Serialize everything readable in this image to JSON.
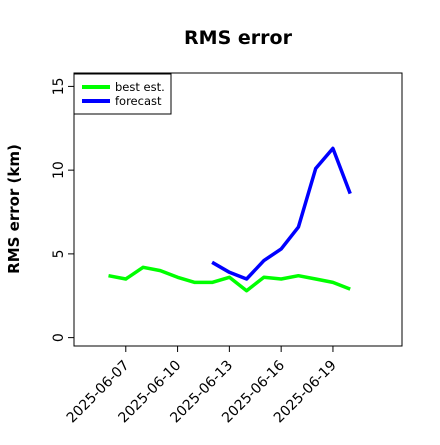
{
  "chart_data": {
    "type": "line",
    "title": "RMS error",
    "xlabel": "",
    "ylabel": "RMS error (km)",
    "x_ticks": [
      "2025-06-07",
      "2025-06-10",
      "2025-06-13",
      "2025-06-16",
      "2025-06-19"
    ],
    "y_ticks": [
      "0",
      "5",
      "10",
      "15"
    ],
    "xlim": [
      "2025-06-04",
      "2025-06-23"
    ],
    "ylim": [
      -0.5,
      15.8
    ],
    "grid": false,
    "legend_position": "top-left",
    "series": [
      {
        "name": "best est.",
        "color": "#00ff00",
        "x": [
          "2025-06-06",
          "2025-06-07",
          "2025-06-08",
          "2025-06-09",
          "2025-06-10",
          "2025-06-11",
          "2025-06-12",
          "2025-06-13",
          "2025-06-14",
          "2025-06-15",
          "2025-06-16",
          "2025-06-17",
          "2025-06-18",
          "2025-06-19",
          "2025-06-20"
        ],
        "values": [
          3.7,
          3.5,
          4.2,
          4.0,
          3.6,
          3.3,
          3.3,
          3.6,
          2.8,
          3.6,
          3.5,
          3.7,
          3.5,
          3.3,
          2.9
        ]
      },
      {
        "name": "forecast",
        "color": "#0000ff",
        "x": [
          "2025-06-12",
          "2025-06-13",
          "2025-06-14",
          "2025-06-15",
          "2025-06-16",
          "2025-06-17",
          "2025-06-18",
          "2025-06-19",
          "2025-06-20"
        ],
        "values": [
          4.5,
          3.9,
          3.5,
          4.6,
          5.3,
          6.6,
          10.1,
          11.3,
          8.6
        ]
      }
    ]
  }
}
